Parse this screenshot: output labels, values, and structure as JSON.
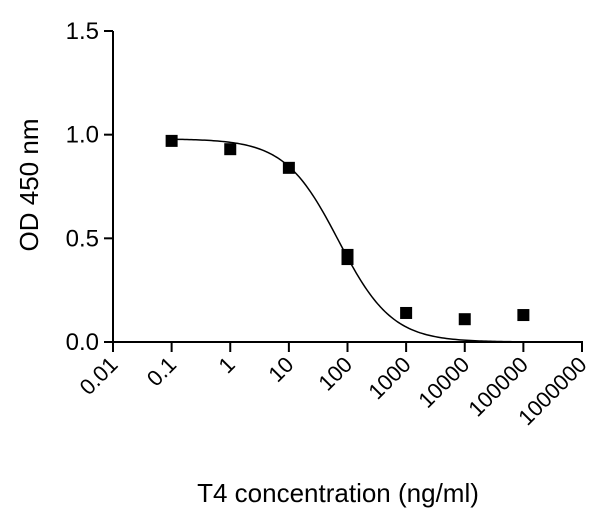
{
  "chart_data": {
    "type": "scatter",
    "xlabel": "T4 concentration (ng/ml)",
    "ylabel": "OD 450 nm",
    "x_scale": "log10",
    "xlim": [
      0.01,
      1000000
    ],
    "ylim": [
      0.0,
      1.5
    ],
    "x_ticks": [
      0.01,
      0.1,
      1,
      10,
      100,
      1000,
      10000,
      100000,
      1000000
    ],
    "x_tick_labels": [
      "0.01",
      "0.1",
      "1",
      "10",
      "100",
      "1000",
      "10000",
      "100000",
      "1000000"
    ],
    "y_ticks": [
      0.0,
      0.5,
      1.0,
      1.5
    ],
    "y_tick_labels": [
      "0.0",
      "0.5",
      "1.0",
      "1.5"
    ],
    "grid": false,
    "points": [
      {
        "x": 0.1,
        "y": 0.97
      },
      {
        "x": 1,
        "y": 0.93
      },
      {
        "x": 10,
        "y": 0.84
      },
      {
        "x": 100,
        "y": 0.42
      },
      {
        "x": 100,
        "y": 0.4
      },
      {
        "x": 1000,
        "y": 0.14
      },
      {
        "x": 10000,
        "y": 0.11
      },
      {
        "x": 100000,
        "y": 0.13
      }
    ],
    "fit_curve": {
      "model": "4PL",
      "top": 0.98,
      "bottom": 0.0,
      "ec50": 70,
      "hill": 0.95,
      "range": [
        0.1,
        100000
      ]
    },
    "marker_color": "#000000",
    "curve_color": "#000000"
  }
}
